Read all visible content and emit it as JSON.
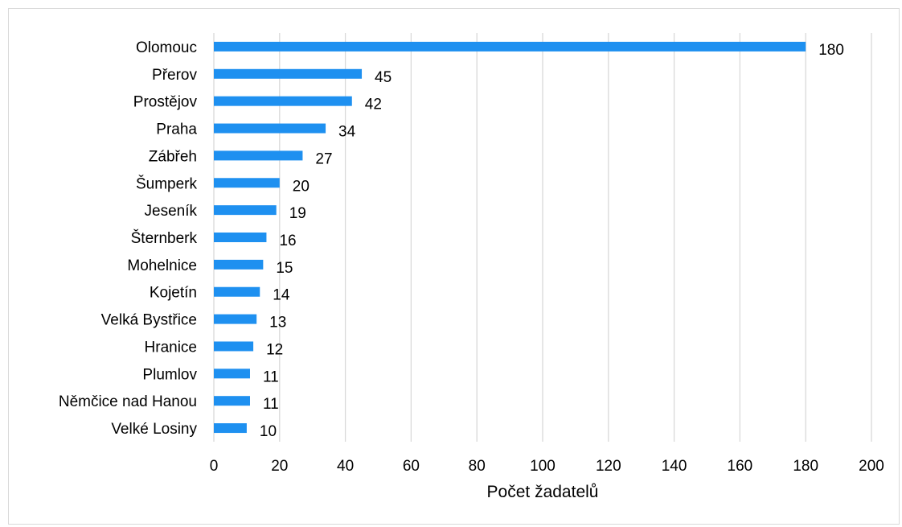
{
  "chart_data": {
    "type": "bar",
    "orientation": "horizontal",
    "categories": [
      "Olomouc",
      "Přerov",
      "Prostějov",
      "Praha",
      "Zábřeh",
      "Šumperk",
      "Jeseník",
      "Šternberk",
      "Mohelnice",
      "Kojetín",
      "Velká Bystřice",
      "Hranice",
      "Plumlov",
      "Němčice nad Hanou",
      "Velké Losiny"
    ],
    "values": [
      180,
      45,
      42,
      34,
      27,
      20,
      19,
      16,
      15,
      14,
      13,
      12,
      11,
      11,
      10
    ],
    "data_labels": [
      "180",
      "45",
      "42",
      "34",
      "27",
      "20",
      "19",
      "16",
      "15",
      "14",
      "13",
      "12",
      "11",
      "11",
      "10"
    ],
    "xlabel": "Počet žadatelů",
    "xlim": [
      0,
      200
    ],
    "xticks": [
      "0",
      "20",
      "40",
      "60",
      "80",
      "100",
      "120",
      "140",
      "160",
      "180",
      "200"
    ],
    "grid": "vertical",
    "legend": "none",
    "colors": {
      "bar": "#1e90f0",
      "grid": "#d9d9d9",
      "text": "#000000"
    }
  }
}
